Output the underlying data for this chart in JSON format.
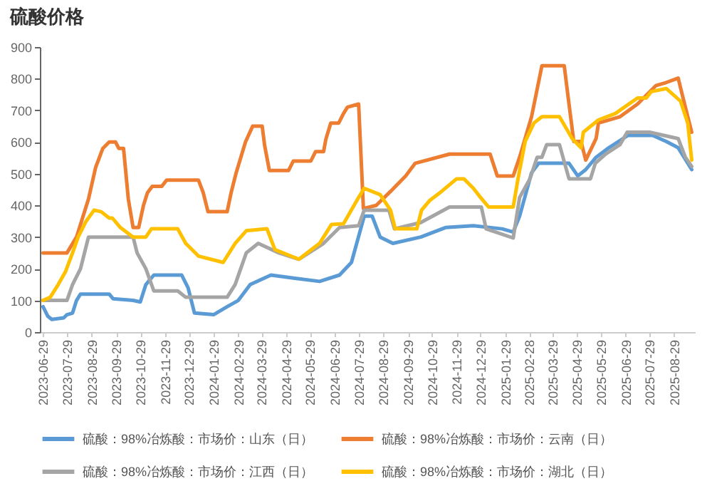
{
  "chart_data": {
    "type": "line",
    "title": "硫酸价格",
    "legend": "bottom",
    "marker": "none",
    "line_style": "solid",
    "grid": false,
    "xlim": [
      "2023-06-25",
      "2025-09-24"
    ],
    "ylim": [
      0,
      900
    ],
    "yticks": [
      0,
      100,
      200,
      300,
      400,
      500,
      600,
      700,
      800,
      900
    ],
    "xticks": [
      "2023-06-29",
      "2023-07-29",
      "2023-08-29",
      "2023-09-29",
      "2023-10-29",
      "2023-11-29",
      "2023-12-29",
      "2024-01-29",
      "2024-02-29",
      "2024-03-29",
      "2024-04-29",
      "2024-05-29",
      "2024-06-29",
      "2024-07-29",
      "2024-08-29",
      "2024-09-29",
      "2024-10-29",
      "2024-11-29",
      "2024-12-29",
      "2025-01-29",
      "2025-02-28",
      "2025-03-29",
      "2025-04-29",
      "2025-05-29",
      "2025-06-29",
      "2025-07-29",
      "2025-08-29"
    ],
    "series": [
      {
        "name": "硫酸：98%冶炼酸：市场价：山东（日）",
        "color": "#5b9bd5",
        "x": [
          "2023-06-29",
          "2023-07-05",
          "2023-07-10",
          "2023-07-25",
          "2023-07-29",
          "2023-08-05",
          "2023-08-10",
          "2023-08-15",
          "2023-09-20",
          "2023-09-25",
          "2023-10-20",
          "2023-10-29",
          "2023-11-05",
          "2023-11-15",
          "2023-12-20",
          "2023-12-28",
          "2024-01-05",
          "2024-01-29",
          "2024-02-15",
          "2024-02-29",
          "2024-03-15",
          "2024-04-10",
          "2024-05-10",
          "2024-06-10",
          "2024-07-05",
          "2024-07-20",
          "2024-08-05",
          "2024-08-15",
          "2024-08-25",
          "2024-09-10",
          "2024-10-15",
          "2024-11-15",
          "2024-12-20",
          "2025-01-25",
          "2025-02-08",
          "2025-02-16",
          "2025-03-03",
          "2025-03-12",
          "2025-04-19",
          "2025-04-30",
          "2025-05-10",
          "2025-05-23",
          "2025-06-08",
          "2025-07-02",
          "2025-08-02",
          "2025-08-19",
          "2025-09-03",
          "2025-09-20"
        ],
        "values": [
          80,
          50,
          40,
          45,
          55,
          60,
          100,
          120,
          120,
          105,
          100,
          95,
          150,
          180,
          180,
          140,
          60,
          55,
          80,
          100,
          150,
          180,
          170,
          160,
          180,
          220,
          366,
          366,
          300,
          280,
          300,
          330,
          336,
          326,
          316,
          366,
          503,
          533,
          533,
          493,
          513,
          552,
          582,
          621,
          621,
          602,
          582,
          513
        ]
      },
      {
        "name": "硫酸：98%冶炼酸：市场价：云南（日）",
        "color": "#ed7d31",
        "x": [
          "2023-06-29",
          "2023-07-29",
          "2023-08-10",
          "2023-08-25",
          "2023-09-03",
          "2023-09-12",
          "2023-09-20",
          "2023-09-28",
          "2023-10-02",
          "2023-10-08",
          "2023-10-14",
          "2023-10-20",
          "2023-10-27",
          "2023-11-02",
          "2023-11-07",
          "2023-11-13",
          "2023-11-25",
          "2023-12-01",
          "2024-01-10",
          "2024-01-16",
          "2024-01-22",
          "2024-02-15",
          "2024-02-20",
          "2024-02-26",
          "2024-03-03",
          "2024-03-09",
          "2024-03-18",
          "2024-03-30",
          "2024-04-02",
          "2024-04-08",
          "2024-05-02",
          "2024-05-08",
          "2024-05-30",
          "2024-06-05",
          "2024-06-15",
          "2024-06-18",
          "2024-06-24",
          "2024-07-04",
          "2024-07-10",
          "2024-07-15",
          "2024-07-29",
          "2024-08-04",
          "2024-08-20",
          "2024-09-07",
          "2024-09-26",
          "2024-10-08",
          "2024-11-20",
          "2025-01-10",
          "2025-01-19",
          "2025-02-08",
          "2025-02-16",
          "2025-03-03",
          "2025-03-16",
          "2025-04-13",
          "2025-04-19",
          "2025-04-25",
          "2025-05-04",
          "2025-05-10",
          "2025-05-23",
          "2025-05-26",
          "2025-06-22",
          "2025-07-14",
          "2025-08-06",
          "2025-08-19",
          "2025-09-03",
          "2025-09-12",
          "2025-09-20"
        ],
        "values": [
          250,
          250,
          300,
          420,
          520,
          580,
          600,
          600,
          580,
          580,
          420,
          330,
          330,
          400,
          440,
          460,
          460,
          480,
          480,
          440,
          380,
          380,
          440,
          500,
          550,
          600,
          650,
          650,
          590,
          510,
          510,
          540,
          540,
          570,
          570,
          610,
          660,
          660,
          690,
          710,
          720,
          390,
          400,
          444,
          493,
          533,
          562,
          562,
          493,
          493,
          552,
          680,
          841,
          841,
          720,
          602,
          602,
          543,
          611,
          660,
          680,
          720,
          778,
          788,
          802,
          710,
          631
        ]
      },
      {
        "name": "硫酸：98%冶炼酸：市场价：江西（日）",
        "color": "#a5a5a5",
        "x": [
          "2023-06-29",
          "2023-07-29",
          "2023-08-05",
          "2023-08-15",
          "2023-08-25",
          "2023-10-20",
          "2023-10-25",
          "2023-11-05",
          "2023-11-15",
          "2023-12-15",
          "2023-12-25",
          "2024-02-15",
          "2024-02-25",
          "2024-03-10",
          "2024-03-25",
          "2024-04-20",
          "2024-05-15",
          "2024-06-15",
          "2024-07-05",
          "2024-07-29",
          "2024-08-05",
          "2024-09-05",
          "2024-09-12",
          "2024-10-15",
          "2024-11-20",
          "2024-12-30",
          "2025-01-05",
          "2025-02-08",
          "2025-02-16",
          "2025-03-01",
          "2025-03-10",
          "2025-03-16",
          "2025-03-22",
          "2025-04-07",
          "2025-04-19",
          "2025-05-16",
          "2025-05-22",
          "2025-06-04",
          "2025-06-22",
          "2025-07-01",
          "2025-07-29",
          "2025-09-03",
          "2025-09-12",
          "2025-09-20"
        ],
        "values": [
          100,
          100,
          150,
          200,
          300,
          300,
          250,
          200,
          130,
          130,
          110,
          110,
          150,
          250,
          280,
          250,
          230,
          280,
          330,
          336,
          385,
          385,
          326,
          346,
          395,
          395,
          326,
          297,
          425,
          484,
          552,
          552,
          592,
          592,
          484,
          484,
          533,
          562,
          592,
          631,
          631,
          611,
          552,
          523
        ]
      },
      {
        "name": "硫酸：98%冶炼酸：市场价：湖北（日）",
        "color": "#ffc000",
        "x": [
          "2023-06-29",
          "2023-07-08",
          "2023-07-18",
          "2023-07-27",
          "2023-08-05",
          "2023-08-12",
          "2023-08-22",
          "2023-09-01",
          "2023-09-10",
          "2023-09-20",
          "2023-09-24",
          "2023-10-04",
          "2023-10-20",
          "2023-11-05",
          "2023-11-12",
          "2023-12-15",
          "2023-12-25",
          "2024-01-10",
          "2024-02-10",
          "2024-02-25",
          "2024-03-10",
          "2024-04-05",
          "2024-04-15",
          "2024-05-15",
          "2024-06-10",
          "2024-06-25",
          "2024-07-10",
          "2024-07-29",
          "2024-08-05",
          "2024-08-25",
          "2024-09-07",
          "2024-09-13",
          "2024-10-10",
          "2024-10-16",
          "2024-10-26",
          "2024-11-10",
          "2024-11-29",
          "2024-12-08",
          "2024-12-20",
          "2024-12-29",
          "2025-01-08",
          "2025-02-08",
          "2025-02-14",
          "2025-02-23",
          "2025-03-06",
          "2025-03-16",
          "2025-04-07",
          "2025-04-16",
          "2025-04-23",
          "2025-05-04",
          "2025-05-07",
          "2025-05-26",
          "2025-06-16",
          "2025-07-14",
          "2025-07-25",
          "2025-07-31",
          "2025-08-19",
          "2025-09-06",
          "2025-09-15",
          "2025-09-20"
        ],
        "values": [
          100,
          110,
          150,
          190,
          250,
          300,
          350,
          385,
          380,
          360,
          360,
          330,
          300,
          300,
          326,
          326,
          280,
          240,
          220,
          280,
          320,
          326,
          260,
          230,
          280,
          340,
          342,
          425,
          454,
          434,
          385,
          326,
          326,
          385,
          415,
          444,
          484,
          484,
          454,
          425,
          395,
          395,
          484,
          602,
          660,
          680,
          680,
          641,
          611,
          582,
          631,
          670,
          690,
          739,
          739,
          759,
          769,
          729,
          660,
          543
        ]
      }
    ]
  }
}
